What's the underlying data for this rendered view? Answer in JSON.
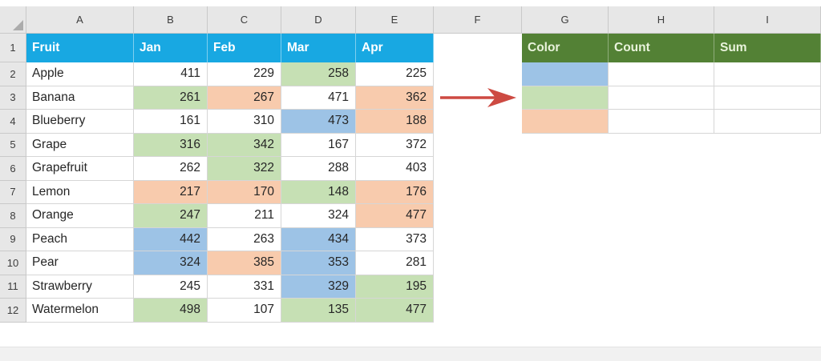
{
  "app": {
    "type": "spreadsheet-worksheet"
  },
  "colors": {
    "blue_header": "#18A8E2",
    "green_header": "#538135",
    "fill_green": "#C6E0B4",
    "fill_orange": "#F8CBAD",
    "fill_blue": "#9DC3E6",
    "arrow_red": "#CD4A42",
    "header_bg": "#E7E7E7",
    "grid_border": "#D6D6D6"
  },
  "sheet": {
    "column_letters": [
      "A",
      "B",
      "C",
      "D",
      "E",
      "F",
      "G",
      "H",
      "I"
    ],
    "row_numbers": [
      "1",
      "2",
      "3",
      "4",
      "5",
      "6",
      "7",
      "8",
      "9",
      "10",
      "11",
      "12"
    ],
    "fruit_table": {
      "headers": [
        "Fruit",
        "Jan",
        "Feb",
        "Mar",
        "Apr"
      ],
      "rows": [
        {
          "row": 2,
          "fruit": "Apple",
          "values": [
            411,
            229,
            258,
            225
          ],
          "fills": [
            "none",
            "none",
            "green",
            "none"
          ]
        },
        {
          "row": 3,
          "fruit": "Banana",
          "values": [
            261,
            267,
            471,
            362
          ],
          "fills": [
            "green",
            "orange",
            "none",
            "orange"
          ]
        },
        {
          "row": 4,
          "fruit": "Blueberry",
          "values": [
            161,
            310,
            473,
            188
          ],
          "fills": [
            "none",
            "none",
            "blue",
            "orange"
          ]
        },
        {
          "row": 5,
          "fruit": "Grape",
          "values": [
            316,
            342,
            167,
            372
          ],
          "fills": [
            "green",
            "green",
            "none",
            "none"
          ]
        },
        {
          "row": 6,
          "fruit": "Grapefruit",
          "values": [
            262,
            322,
            288,
            403
          ],
          "fills": [
            "none",
            "green",
            "none",
            "none"
          ]
        },
        {
          "row": 7,
          "fruit": "Lemon",
          "values": [
            217,
            170,
            148,
            176
          ],
          "fills": [
            "orange",
            "orange",
            "green",
            "orange"
          ]
        },
        {
          "row": 8,
          "fruit": "Orange",
          "values": [
            247,
            211,
            324,
            477
          ],
          "fills": [
            "green",
            "none",
            "none",
            "orange"
          ]
        },
        {
          "row": 9,
          "fruit": "Peach",
          "values": [
            442,
            263,
            434,
            373
          ],
          "fills": [
            "blue",
            "none",
            "blue",
            "none"
          ]
        },
        {
          "row": 10,
          "fruit": "Pear",
          "values": [
            324,
            385,
            353,
            281
          ],
          "fills": [
            "blue",
            "orange",
            "blue",
            "none"
          ]
        },
        {
          "row": 11,
          "fruit": "Strawberry",
          "values": [
            245,
            331,
            329,
            195
          ],
          "fills": [
            "none",
            "none",
            "blue",
            "green"
          ]
        },
        {
          "row": 12,
          "fruit": "Watermelon",
          "values": [
            498,
            107,
            135,
            477
          ],
          "fills": [
            "green",
            "none",
            "green",
            "green"
          ]
        }
      ]
    },
    "summary_table": {
      "headers": [
        "Color",
        "Count",
        "Sum"
      ],
      "rows": [
        {
          "row": 2,
          "color_fill": "blue",
          "count": "",
          "sum": ""
        },
        {
          "row": 3,
          "color_fill": "green",
          "count": "",
          "sum": ""
        },
        {
          "row": 4,
          "color_fill": "orange",
          "count": "",
          "sum": ""
        }
      ]
    },
    "annotation": {
      "icon": "red-right-arrow"
    }
  }
}
